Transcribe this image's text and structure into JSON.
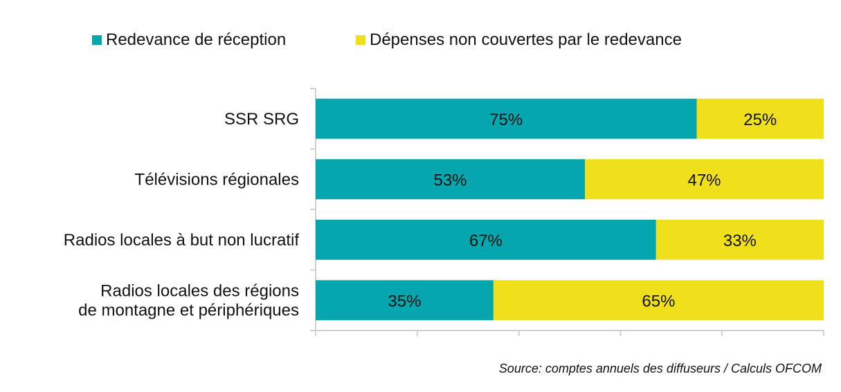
{
  "chart_data": {
    "type": "bar",
    "orientation": "horizontal",
    "stacked": "percent",
    "categories": [
      "SSR SRG",
      "Télévisions régionales",
      "Radios locales à but non lucratif",
      "Radios locales des régions\nde montagne et périphériques"
    ],
    "series": [
      {
        "name": "Redevance de réception",
        "color": "#05A6AE",
        "values": [
          75,
          53,
          67,
          35
        ],
        "labels": [
          "75%",
          "53%",
          "67%",
          "35%"
        ]
      },
      {
        "name": "Dépenses non couvertes par le redevance",
        "color": "#F0E01C",
        "values": [
          25,
          47,
          33,
          65
        ],
        "labels": [
          "25%",
          "47%",
          "33%",
          "65%"
        ]
      }
    ],
    "xlim": [
      0,
      100
    ],
    "grid": false,
    "legend": "top",
    "source": "Source: comptes annuels des diffuseurs / Calculs OFCOM"
  }
}
